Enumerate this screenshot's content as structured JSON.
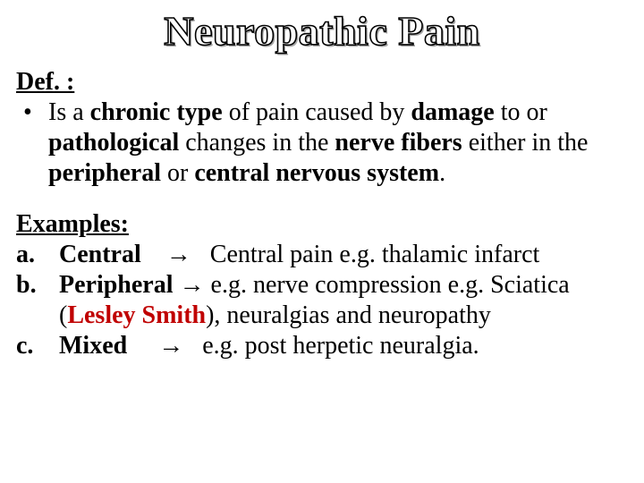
{
  "title": "Neuropathic Pain",
  "def": {
    "heading": "Def. :",
    "bullet": "•",
    "text_html": "Is a <b>chronic type</b> of pain caused by <b>damage</b> to or <b>pathological</b> changes in the <b>nerve fibers</b> either in the <b>peripheral</b> or <b>central nervous system</b>."
  },
  "examples": {
    "heading": "Examples:",
    "items": [
      {
        "label": "a.",
        "cat": "Central",
        "arrow": "→",
        "rest": "Central pain  e.g. thalamic infarct"
      },
      {
        "label": "b.",
        "cat": "Peripheral",
        "arrow": "→",
        "rest_pre": "e.g. nerve compression e.g. Sciatica (",
        "name": "Lesley Smith",
        "rest_post": "), neuralgias and neuropathy"
      },
      {
        "label": "c.",
        "cat": "Mixed",
        "arrow": "→",
        "rest": "e.g. post herpetic neuralgia."
      }
    ]
  },
  "colors": {
    "text": "#000000",
    "name": "#c00000",
    "background": "#ffffff"
  }
}
